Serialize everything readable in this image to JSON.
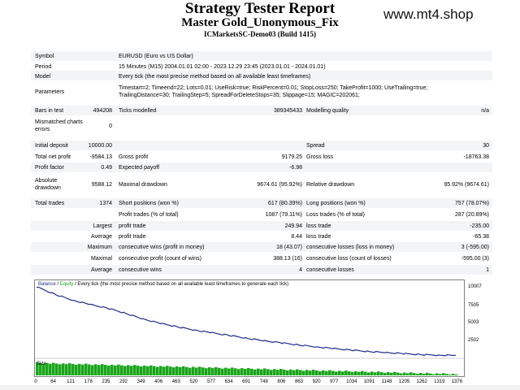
{
  "header": {
    "title": "Strategy Tester Report",
    "subtitle": "Master Gold_Unonymous_Fix",
    "server": "ICMarketsSC-Demo03 (Build 1415)",
    "watermark": "www.mt4.shop"
  },
  "info": {
    "symbol_label": "Symbol",
    "symbol_value": "EURUSD (Euro vs US Dollar)",
    "period_label": "Period",
    "period_value": "15 Minutes (M15) 2004.01.01 02:00 - 2023.12.29 23:45 (2023.01.01 - 2024.01.01)",
    "model_label": "Model",
    "model_value": "Every tick (the most precise method based on all available least timeframes)",
    "parameters_label": "Parameters",
    "parameters_line1": "Timestart=2; Timeend=22; Lots=0.01; UseRisk=true; RiskPercent=0.01; StopLoss=250; TakeProfit=1000; UseTrailing=true;",
    "parameters_line2": "TrailingDistance=30; TrailingStep=5; SpreadForDeleteStops=35; Slippage=15; MAGIC=202061;"
  },
  "stats": {
    "bars_label": "Bars in test",
    "bars_value": "494208",
    "ticks_label": "Ticks modelled",
    "ticks_value": "389345433",
    "quality_label": "Modelling quality",
    "quality_value": "n/a",
    "mismatch_label1": "Mismatched charts",
    "mismatch_label2": "errors",
    "mismatch_value": "0",
    "deposit_label": "Initial deposit",
    "deposit_value": "10000.00",
    "spread_label": "Spread",
    "spread_value": "30",
    "netprofit_label": "Total net profit",
    "netprofit_value": "-9584.13",
    "grossprofit_label": "Gross profit",
    "grossprofit_value": "9179.25",
    "grossloss_label": "Gross loss",
    "grossloss_value": "-18763.38",
    "pf_label": "Profit factor",
    "pf_value": "0.49",
    "payoff_label": "Expected payoff",
    "payoff_value": "-6.98",
    "absdd_label1": "Absolute",
    "absdd_label2": "drawdown",
    "absdd_value": "9588.12",
    "maxdd_label": "Maximal drawdown",
    "maxdd_value": "9674.61 (95.92%)",
    "reldd_label": "Relative drawdown",
    "reldd_value": "95.92% (9674.61)",
    "trades_label": "Total trades",
    "trades_value": "1374",
    "short_label": "Short positions (won %)",
    "short_value": "617 (80.39%)",
    "long_label": "Long positions (won %)",
    "long_value": "757 (78.07%)",
    "profittrades_label": "Profit trades (% of total)",
    "profittrades_value": "1087 (79.11%)",
    "losstrades_label": "Loss trades (% of total)",
    "losstrades_value": "287 (20.89%)",
    "largest_label": "Largest",
    "largest_profit_label": "profit trade",
    "largest_profit_value": "249.94",
    "largest_loss_label": "loss trade",
    "largest_loss_value": "-235.00",
    "average_label": "Average",
    "average_profit_label": "profit trade",
    "average_profit_value": "8.44",
    "average_loss_label": "loss trade",
    "average_loss_value": "-65.38",
    "maximum_label": "Maximum",
    "max_wins_label": "consecutive wins (profit in money)",
    "max_wins_value": "18 (43.07)",
    "max_losses_label": "consecutive losses (loss in money)",
    "max_losses_value": "3 (-595.00)",
    "maximal_label": "Maximal",
    "maximal_profit_label": "consecutive profit (count of wins)",
    "maximal_profit_value": "388.13 (16)",
    "maximal_loss_label": "consecutive loss (count of losses)",
    "maximal_loss_value": "-595.00 (3)",
    "avg2_label": "Average",
    "avg_wins_label": "consecutive wins",
    "avg_wins_value": "4",
    "avg_losses_label": "consecutive losses",
    "avg_losses_value": "1"
  },
  "graph": {
    "legend_balance": "Balance",
    "legend_sep": " / ",
    "legend_equity": "Equity",
    "legend_rest": " / Every tick (the most precise method based on all available least timeframes to generate each tick)",
    "size_label": "Size",
    "y_labels": [
      "10007",
      "7505",
      "5003",
      "2502"
    ],
    "x_labels": [
      "0",
      "64",
      "121",
      "178",
      "235",
      "292",
      "349",
      "406",
      "463",
      "520",
      "577",
      "634",
      "691",
      "748",
      "806",
      "863",
      "920",
      "977",
      "1034",
      "1091",
      "1148",
      "1205",
      "1262",
      "1319",
      "1376"
    ],
    "colors": {
      "balance": "#1c2b8f",
      "equity": "#19a51a",
      "volume": "#19a51a"
    }
  },
  "chart_data": {
    "type": "line",
    "x": [
      0,
      64,
      121,
      178,
      235,
      292,
      349,
      406,
      463,
      520,
      577,
      634,
      691,
      748,
      806,
      863,
      920,
      977,
      1034,
      1091,
      1148,
      1205,
      1262,
      1319,
      1376
    ],
    "series": [
      {
        "name": "Balance",
        "values": [
          10000,
          8900,
          8100,
          7500,
          7000,
          6300,
          5500,
          4900,
          4400,
          3950,
          3550,
          3200,
          2800,
          2450,
          2150,
          1850,
          1600,
          1350,
          1150,
          950,
          800,
          650,
          520,
          440,
          416
        ]
      }
    ],
    "ylim": [
      0,
      10007
    ],
    "xlim": [
      0,
      1376
    ]
  }
}
